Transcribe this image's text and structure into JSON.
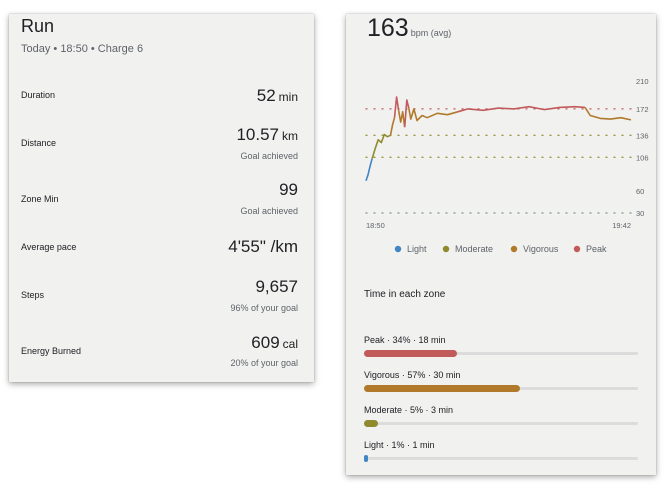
{
  "summary": {
    "title": "Run",
    "subtitle": "Today • 18:50 • Charge 6",
    "stats": [
      {
        "label": "Duration",
        "value": "52",
        "unit": "min",
        "note": ""
      },
      {
        "label": "Distance",
        "value": "10.57",
        "unit": "km",
        "note": "Goal achieved"
      },
      {
        "label": "Zone Min",
        "value": "99",
        "unit": "",
        "note": "Goal achieved"
      },
      {
        "label": "Average pace",
        "value": "4'55\" /km",
        "unit": "",
        "note": ""
      },
      {
        "label": "Steps",
        "value": "9,657",
        "unit": "",
        "note": "96% of your goal"
      },
      {
        "label": "Energy Burned",
        "value": "609",
        "unit": "cal",
        "note": "20% of your goal"
      }
    ]
  },
  "heart_rate": {
    "value": "163",
    "unit": "bpm (avg)"
  },
  "chart_data": {
    "type": "line",
    "title": "",
    "x_ticks": [
      "18:50",
      "19:42"
    ],
    "y_ticks": [
      "210",
      "172",
      "136",
      "106",
      "60",
      "30"
    ],
    "zone_lines": [
      172,
      136,
      106,
      30
    ],
    "legend": [
      "Light",
      "Moderate",
      "Vigorous",
      "Peak"
    ],
    "colors": {
      "Light": "#4285c4",
      "Moderate": "#8f8a2e",
      "Vigorous": "#b07a2a",
      "Peak": "#c15a5a"
    },
    "series": [
      {
        "name": "Light",
        "x": [
          0.0,
          0.4,
          0.8,
          1.2
        ],
        "y": [
          74,
          82,
          94,
          104
        ]
      },
      {
        "name": "Moderate",
        "x": [
          1.2,
          1.8,
          2.4,
          3.0,
          3.6,
          4.2,
          4.8
        ],
        "y": [
          104,
          118,
          130,
          126,
          137,
          134,
          136
        ]
      },
      {
        "name": "Vigorous",
        "x": [
          4.8,
          5.2,
          5.6
        ],
        "y": [
          136,
          150,
          160
        ]
      },
      {
        "name": "Peak",
        "x": [
          5.6,
          6.0,
          6.4
        ],
        "y": [
          160,
          188,
          170
        ]
      },
      {
        "name": "Vigorous",
        "x": [
          6.4,
          6.8,
          7.2,
          7.6
        ],
        "y": [
          170,
          154,
          168,
          147
        ]
      },
      {
        "name": "Peak",
        "x": [
          7.6,
          8.0,
          8.4
        ],
        "y": [
          147,
          184,
          173
        ]
      },
      {
        "name": "Vigorous",
        "x": [
          8.4,
          8.8,
          9.4,
          10,
          11,
          12,
          14,
          16,
          18
        ],
        "y": [
          173,
          158,
          172,
          156,
          163,
          160,
          166,
          164,
          168
        ]
      },
      {
        "name": "Peak",
        "x": [
          18,
          20,
          23,
          26,
          29,
          32,
          35,
          38,
          41,
          43
        ],
        "y": [
          168,
          172,
          170,
          173,
          172,
          175,
          171,
          174,
          175,
          174
        ]
      },
      {
        "name": "Vigorous",
        "x": [
          43,
          44,
          46,
          48,
          50,
          52
        ],
        "y": [
          174,
          163,
          159,
          158,
          160,
          157
        ]
      }
    ],
    "xlim": [
      0,
      52
    ],
    "ylim": [
      30,
      210
    ]
  },
  "zones": {
    "title": "Time in each zone",
    "items": [
      {
        "label": "Peak · 34% · 18 min",
        "fraction": 0.34,
        "color": "#c15a5a"
      },
      {
        "label": "Vigorous · 57% · 30 min",
        "fraction": 0.57,
        "color": "#b07a2a"
      },
      {
        "label": "Moderate · 5% · 3 min",
        "fraction": 0.05,
        "color": "#8f8a2e"
      },
      {
        "label": "Light · 1% · 1 min",
        "fraction": 0.01,
        "color": "#4285c4"
      }
    ]
  }
}
